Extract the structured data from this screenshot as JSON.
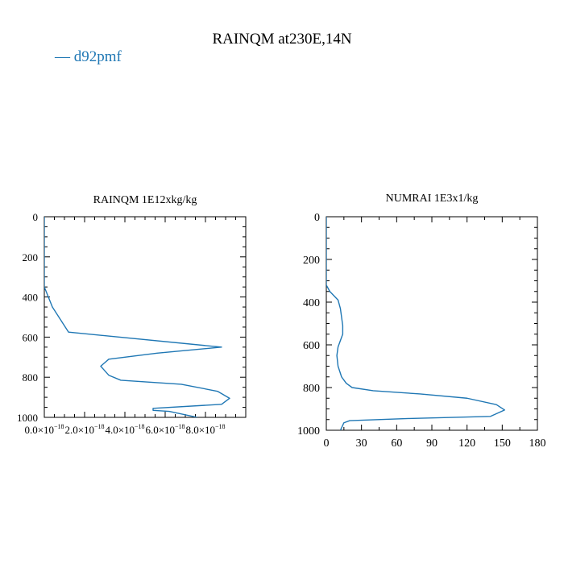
{
  "figure": {
    "title": "RAINQM at230E,14N",
    "legend": {
      "label": "— d92pmf",
      "color": "#1f77b4",
      "placement": "top-left"
    }
  },
  "chart_data": [
    {
      "type": "line",
      "title": "RAINQM  1E12xkg/kg",
      "xlabel": "",
      "ylabel": "",
      "xlim": [
        0,
        1e-17
      ],
      "ylim": [
        1000,
        0
      ],
      "y_inverted": true,
      "grid": false,
      "xticks": [
        0,
        2e-18,
        4e-18,
        6e-18,
        8e-18
      ],
      "xtick_labels": [
        {
          "mantissa": "0.0×10",
          "exp": "−18"
        },
        {
          "mantissa": "2.0×10",
          "exp": "−18"
        },
        {
          "mantissa": "4.0×10",
          "exp": "−18"
        },
        {
          "mantissa": "6.0×10",
          "exp": "−18"
        },
        {
          "mantissa": "8.0×10",
          "exp": "−18"
        }
      ],
      "yticks": [
        0,
        200,
        400,
        600,
        800,
        1000
      ],
      "ytick_labels": [
        "0",
        "200",
        "400",
        "600",
        "800",
        "1000"
      ],
      "series": [
        {
          "name": "d92pmf",
          "color": "#1f77b4",
          "x": [
            0,
            0,
            0,
            4e-19,
            1.2e-18,
            8.8e-18,
            5.6e-18,
            3.2e-18,
            2.8e-18,
            3.2e-18,
            3.8e-18,
            6.8e-18,
            8.6e-18,
            9.2e-18,
            8.8e-18,
            5.4e-18,
            5.4e-18,
            6.2e-18,
            7.6e-18
          ],
          "y": [
            0,
            300,
            350,
            450,
            575,
            650,
            680,
            710,
            745,
            790,
            815,
            835,
            870,
            905,
            935,
            955,
            965,
            970,
            1000
          ]
        }
      ]
    },
    {
      "type": "line",
      "title": "NUMRAI  1E3x1/kg",
      "xlabel": "",
      "ylabel": "",
      "xlim": [
        0,
        180
      ],
      "ylim": [
        1000,
        0
      ],
      "y_inverted": true,
      "grid": false,
      "xticks": [
        0,
        30,
        60,
        90,
        120,
        150,
        180
      ],
      "xtick_labels": [
        "0",
        "30",
        "60",
        "90",
        "120",
        "150",
        "180"
      ],
      "yticks": [
        0,
        200,
        400,
        600,
        800,
        1000
      ],
      "ytick_labels": [
        "0",
        "200",
        "400",
        "600",
        "800",
        "1000"
      ],
      "series": [
        {
          "name": "d92pmf",
          "color": "#1f77b4",
          "x": [
            0,
            0,
            3,
            10,
            12,
            14,
            14,
            10,
            9,
            10,
            13,
            17,
            22,
            40,
            80,
            120,
            145,
            152,
            140,
            70,
            20,
            15,
            12
          ],
          "y": [
            0,
            320,
            350,
            390,
            430,
            510,
            550,
            610,
            650,
            700,
            750,
            780,
            800,
            815,
            830,
            850,
            880,
            905,
            935,
            945,
            955,
            965,
            1000
          ]
        }
      ]
    }
  ]
}
